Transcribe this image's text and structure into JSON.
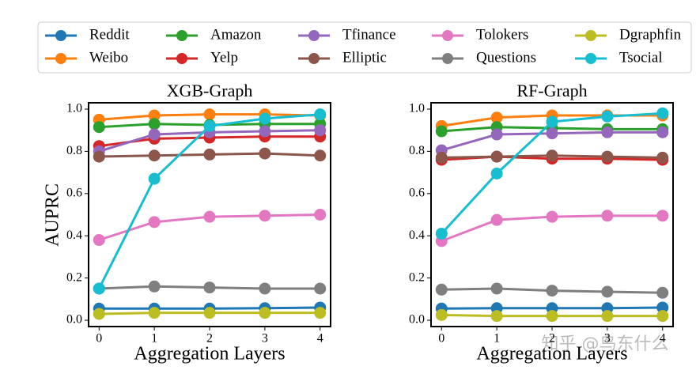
{
  "chart_data": [
    {
      "type": "line",
      "title": "XGB-Graph",
      "xlabel": "Aggregation Layers",
      "ylabel": "AUPRC",
      "x": [
        0,
        1,
        2,
        3,
        4
      ],
      "xlim": [
        -0.19,
        4.19
      ],
      "xticks": [
        0,
        1,
        2,
        3,
        4
      ],
      "ylim": [
        -0.03,
        1.03
      ],
      "yticks": [
        {
          "value": 0,
          "label": "0.0"
        },
        0.2,
        0.4,
        0.6,
        0.8,
        {
          "value": 1,
          "label": "1.0"
        }
      ],
      "series": [
        {
          "name": "Reddit",
          "color": "#1f77b4",
          "values": [
            0.055,
            0.055,
            0.055,
            0.057,
            0.06
          ]
        },
        {
          "name": "Weibo",
          "color": "#ff7f0e",
          "values": [
            0.95,
            0.97,
            0.975,
            0.975,
            0.97
          ]
        },
        {
          "name": "Amazon",
          "color": "#2ca02c",
          "values": [
            0.915,
            0.93,
            0.925,
            0.93,
            0.93
          ]
        },
        {
          "name": "Yelp",
          "color": "#d62728",
          "values": [
            0.825,
            0.86,
            0.865,
            0.87,
            0.87
          ]
        },
        {
          "name": "Tfinance",
          "color": "#9467bd",
          "values": [
            0.8,
            0.88,
            0.89,
            0.895,
            0.9
          ]
        },
        {
          "name": "Elliptic",
          "color": "#8c564b",
          "values": [
            0.775,
            0.78,
            0.785,
            0.79,
            0.78
          ]
        },
        {
          "name": "Tolokers",
          "color": "#e377c2",
          "values": [
            0.38,
            0.465,
            0.49,
            0.495,
            0.5
          ]
        },
        {
          "name": "Questions",
          "color": "#7f7f7f",
          "values": [
            0.15,
            0.16,
            0.155,
            0.15,
            0.15
          ]
        },
        {
          "name": "Dgraphfin",
          "color": "#bcbd22",
          "values": [
            0.03,
            0.035,
            0.035,
            0.035,
            0.035
          ]
        },
        {
          "name": "Tsocial",
          "color": "#17becf",
          "values": [
            0.15,
            0.67,
            0.92,
            0.955,
            0.975
          ]
        }
      ]
    },
    {
      "type": "line",
      "title": "RF-Graph",
      "xlabel": "Aggregation Layers",
      "x": [
        0,
        1,
        2,
        3,
        4
      ],
      "xlim": [
        -0.19,
        4.19
      ],
      "xticks": [
        0,
        1,
        2,
        3,
        4
      ],
      "ylim": [
        -0.03,
        1.03
      ],
      "yticks": [
        {
          "value": 0,
          "label": "0.0"
        },
        0.2,
        0.4,
        0.6,
        0.8,
        {
          "value": 1,
          "label": "1.0"
        }
      ],
      "series": [
        {
          "color": "#1f77b4",
          "values": [
            0.055,
            0.057,
            0.057,
            0.057,
            0.06
          ]
        },
        {
          "color": "#ff7f0e",
          "values": [
            0.92,
            0.96,
            0.97,
            0.97,
            0.97
          ]
        },
        {
          "color": "#2ca02c",
          "values": [
            0.895,
            0.915,
            0.91,
            0.905,
            0.905
          ]
        },
        {
          "color": "#d62728",
          "values": [
            0.76,
            0.775,
            0.765,
            0.765,
            0.76
          ]
        },
        {
          "color": "#9467bd",
          "values": [
            0.805,
            0.88,
            0.885,
            0.89,
            0.89
          ]
        },
        {
          "color": "#8c564b",
          "values": [
            0.77,
            0.775,
            0.78,
            0.775,
            0.77
          ]
        },
        {
          "color": "#e377c2",
          "values": [
            0.375,
            0.475,
            0.49,
            0.495,
            0.495
          ]
        },
        {
          "color": "#7f7f7f",
          "values": [
            0.145,
            0.15,
            0.14,
            0.135,
            0.13
          ]
        },
        {
          "color": "#bcbd22",
          "values": [
            0.025,
            0.02,
            0.02,
            0.02,
            0.02
          ]
        },
        {
          "color": "#17becf",
          "values": [
            0.41,
            0.695,
            0.94,
            0.965,
            0.98
          ]
        }
      ]
    }
  ],
  "watermark": "知乎 @鸟东什么"
}
